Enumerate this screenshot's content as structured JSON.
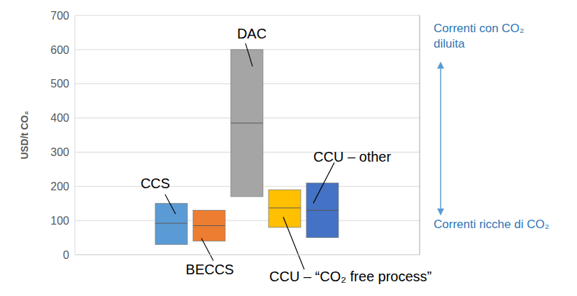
{
  "chart_data": {
    "type": "floating_box",
    "ylabel": "USD/t CO₂",
    "categories": [
      "CCS",
      "BECCS",
      "DAC",
      "CCU – “CO₂ free process”",
      "CCU – other"
    ],
    "low": [
      30,
      40,
      170,
      80,
      50
    ],
    "high": [
      150,
      130,
      600,
      190,
      210
    ],
    "median": [
      92,
      85,
      385,
      137,
      130
    ],
    "colors": [
      "#5b9bd5",
      "#ed7d31",
      "#a5a5a5",
      "#ffc000",
      "#4472c4"
    ],
    "ylim": [
      0,
      700
    ],
    "yticks": [
      0,
      100,
      200,
      300,
      400,
      500,
      600,
      700
    ],
    "grid": true,
    "tick_labels": "y",
    "annotations": [
      "Correnti con CO₂ diluita",
      "Correnti ricche di CO₂"
    ]
  }
}
